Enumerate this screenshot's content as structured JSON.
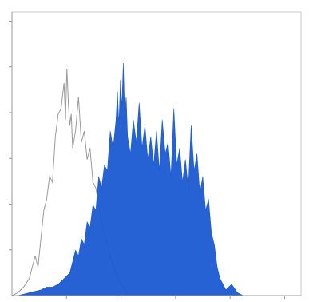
{
  "chart_data": {
    "type": "area",
    "title": "",
    "xlabel": "",
    "ylabel": "",
    "xlim": [
      0,
      100
    ],
    "ylim": [
      0,
      100
    ],
    "grid": false,
    "legend": "none",
    "series": [
      {
        "style": "outline",
        "color": "#9a9a9a",
        "x": [
          0,
          2,
          4,
          6,
          8,
          9,
          10,
          11,
          12,
          13,
          14,
          15,
          16,
          17,
          18,
          18.5,
          19,
          19.5,
          20,
          20.5,
          21,
          22,
          23,
          24,
          25,
          26,
          27,
          28,
          29,
          30,
          31,
          32,
          34,
          36,
          38,
          40
        ],
        "values": [
          0,
          1,
          3,
          6,
          14,
          10,
          20,
          30,
          34,
          42,
          40,
          56,
          64,
          66,
          75,
          62,
          80,
          68,
          60,
          64,
          52,
          58,
          70,
          54,
          58,
          48,
          52,
          40,
          38,
          32,
          26,
          22,
          14,
          8,
          4,
          0
        ]
      },
      {
        "style": "filled",
        "color": "#1a5ad2",
        "x": [
          2,
          6,
          10,
          12,
          14,
          16,
          18,
          20,
          21,
          22,
          23,
          24,
          25,
          26,
          27,
          28,
          29,
          30,
          31,
          32,
          33,
          34,
          35,
          36,
          36.5,
          37,
          37.5,
          38,
          38.5,
          39,
          39.5,
          40,
          41,
          42,
          43,
          44,
          45,
          46,
          47,
          48,
          49,
          50,
          51,
          52,
          53,
          54,
          55,
          56,
          57,
          58,
          59,
          60,
          61,
          62,
          63,
          64,
          65,
          66,
          67,
          68,
          69,
          70,
          71,
          72,
          74,
          76,
          78,
          80
        ],
        "values": [
          0,
          1,
          2,
          3,
          3,
          4,
          6,
          8,
          12,
          16,
          14,
          20,
          18,
          26,
          24,
          32,
          30,
          42,
          38,
          46,
          44,
          58,
          52,
          62,
          72,
          60,
          76,
          66,
          82,
          64,
          70,
          56,
          50,
          62,
          54,
          68,
          52,
          60,
          48,
          56,
          46,
          58,
          44,
          62,
          50,
          54,
          42,
          66,
          46,
          52,
          40,
          48,
          38,
          60,
          44,
          50,
          36,
          42,
          30,
          34,
          22,
          18,
          10,
          6,
          2,
          4,
          1,
          0
        ]
      }
    ]
  }
}
